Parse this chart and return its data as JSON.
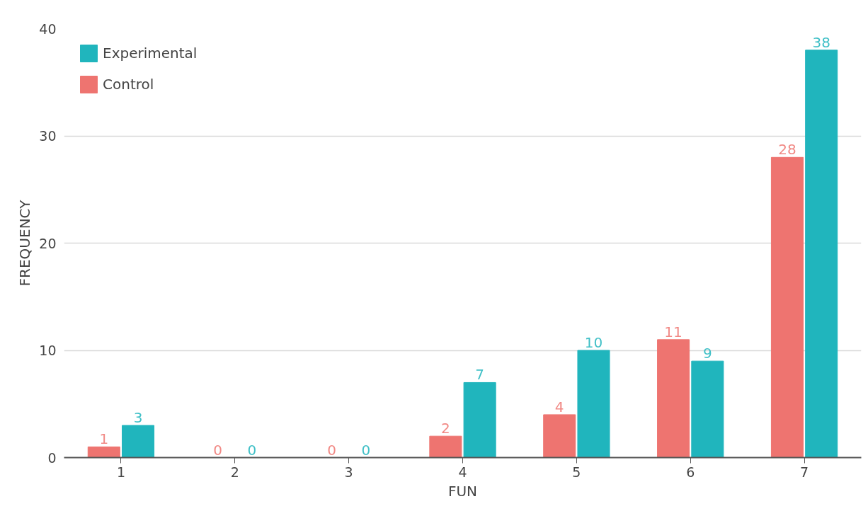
{
  "chart_data": {
    "type": "bar",
    "xlabel": "FUN",
    "ylabel": "FREQUENCY",
    "categories": [
      "1",
      "2",
      "3",
      "4",
      "5",
      "6",
      "7"
    ],
    "series": [
      {
        "name": "Control",
        "color": "#ee7470",
        "values": [
          1,
          0,
          0,
          2,
          4,
          11,
          28
        ]
      },
      {
        "name": "Experimental",
        "color": "#20b5bd",
        "values": [
          3,
          0,
          0,
          7,
          10,
          9,
          38
        ]
      }
    ],
    "ylim": [
      0,
      40
    ],
    "yticks": [
      0,
      10,
      20,
      30,
      40
    ],
    "grid": "y",
    "legend": "top left",
    "data_labels": true
  }
}
